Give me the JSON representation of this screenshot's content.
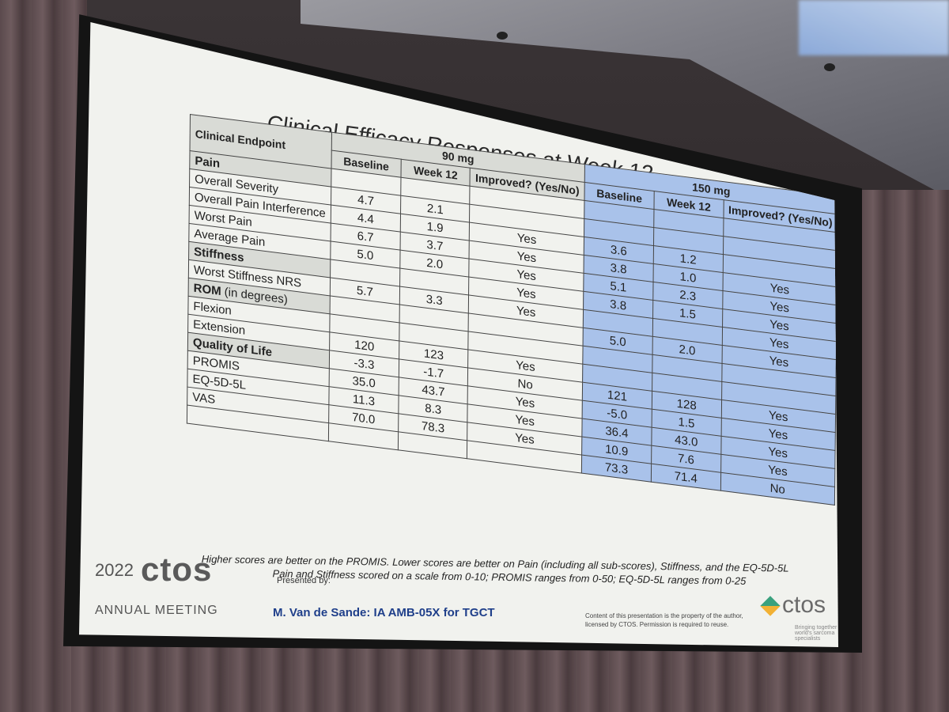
{
  "slide": {
    "title": "Clinical Efficacy Responses at Week 12",
    "table": {
      "col_endpoint": "Clinical Endpoint",
      "group_90": "90 mg",
      "group_150": "150 mg",
      "col_baseline": "Baseline",
      "col_week12": "Week 12",
      "col_improved": "Improved? (Yes/No)",
      "rows": [
        {
          "label": "Pain",
          "section": true
        },
        {
          "label": "Overall Severity",
          "v90": [
            "4.7",
            "2.1",
            ""
          ],
          "v150": [
            "",
            "",
            ""
          ]
        },
        {
          "label": "Overall Pain Interference",
          "v90": [
            "4.4",
            "1.9",
            "Yes"
          ],
          "v150": [
            "3.6",
            "1.2",
            ""
          ]
        },
        {
          "label": "Worst Pain",
          "v90": [
            "6.7",
            "3.7",
            "Yes"
          ],
          "v150": [
            "3.8",
            "1.0",
            "Yes"
          ]
        },
        {
          "label": "Average Pain",
          "v90": [
            "5.0",
            "2.0",
            "Yes"
          ],
          "v150": [
            "5.1",
            "2.3",
            "Yes"
          ]
        },
        {
          "label": "Stiffness",
          "section": true,
          "v90": [
            "",
            "",
            "Yes"
          ],
          "v150": [
            "3.8",
            "1.5",
            "Yes"
          ]
        },
        {
          "label": "Worst Stiffness NRS",
          "v90": [
            "5.7",
            "3.3",
            "Yes"
          ],
          "v150": [
            "",
            "",
            "Yes"
          ]
        },
        {
          "label": "ROM",
          "label_suffix": "(in degrees)",
          "section": true,
          "v90": [
            "",
            "",
            ""
          ],
          "v150": [
            "5.0",
            "2.0",
            "Yes"
          ]
        },
        {
          "label": "Flexion",
          "v90": [
            "",
            "",
            ""
          ],
          "v150": [
            "",
            "",
            ""
          ]
        },
        {
          "label": "Extension",
          "v90": [
            "120",
            "123",
            "Yes"
          ],
          "v150": [
            "",
            "",
            ""
          ]
        },
        {
          "label": "Quality of Life",
          "section": true,
          "v90": [
            "-3.3",
            "-1.7",
            "No"
          ],
          "v150": [
            "121",
            "128",
            "Yes"
          ]
        },
        {
          "label": "PROMIS",
          "v90": [
            "35.0",
            "43.7",
            "Yes"
          ],
          "v150": [
            "-5.0",
            "1.5",
            "Yes"
          ]
        },
        {
          "label": "EQ-5D-5L",
          "v90": [
            "11.3",
            "8.3",
            "Yes"
          ],
          "v150": [
            "36.4",
            "43.0",
            "Yes"
          ]
        },
        {
          "label": "VAS",
          "v90": [
            "70.0",
            "78.3",
            "Yes"
          ],
          "v150": [
            "10.9",
            "7.6",
            "Yes"
          ]
        },
        {
          "label": "",
          "v90": [
            "",
            "",
            ""
          ],
          "v150": [
            "73.3",
            "71.4",
            "No"
          ]
        }
      ]
    },
    "footnote_line1": "Higher scores are better on the PROMIS.  Lower scores are better on Pain (including all sub-scores), Stiffness, and the EQ-5D-5L",
    "footnote_line2": "Pain and Stiffness scored on a scale from 0-10; PROMIS ranges from 0-50; EQ-5D-5L ranges from 0-25",
    "logo_year": "2022",
    "logo_name": "ctos",
    "logo_meeting": "ANNUAL MEETING",
    "presented_by": "Presented by:",
    "presenter": "M. Van de Sande: IA AMB-05X for TGCT",
    "copyright": "Content of this presentation is the property of the author, licensed by CTOS. Permission is required to reuse.",
    "right_logo": "ctos",
    "tagline": "Bringing together the world's sarcoma specialists"
  }
}
